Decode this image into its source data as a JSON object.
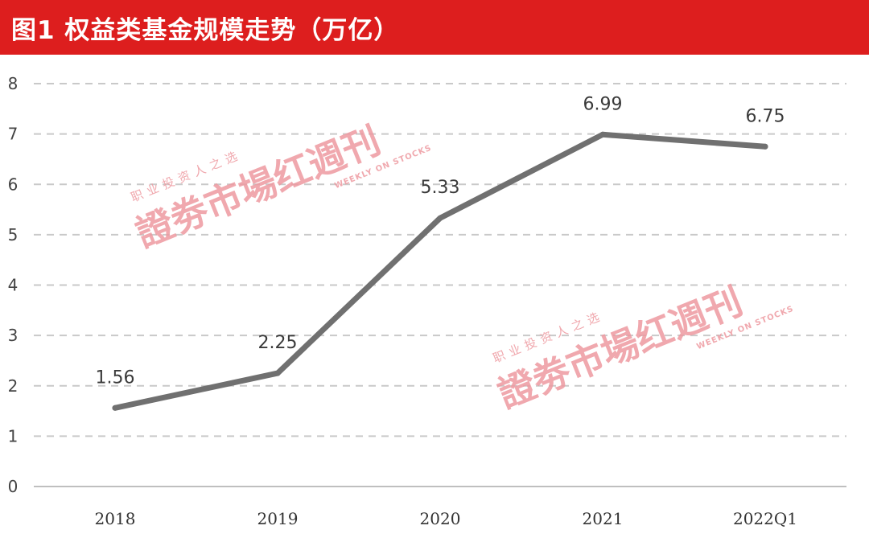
{
  "header": {
    "title": "图1  权益类基金规模走势（万亿）",
    "background": "#dd1e1e"
  },
  "chart_data": {
    "type": "line",
    "title": "图1  权益类基金规模走势（万亿）",
    "categories": [
      "2018",
      "2019",
      "2020",
      "2021",
      "2022Q1"
    ],
    "series": [
      {
        "values": [
          1.56,
          2.25,
          5.33,
          6.99,
          6.75
        ]
      }
    ],
    "data_labels": [
      "1.56",
      "2.25",
      "5.33",
      "6.99",
      "6.75"
    ],
    "y_ticks": [
      "0",
      "1",
      "2",
      "3",
      "4",
      "5",
      "6",
      "7",
      "8"
    ],
    "ylim": [
      0,
      8
    ],
    "grid": "dashed horizontal",
    "line_color": "#707070"
  },
  "watermark": {
    "main_text": "證劵市場红週刊",
    "small_text": "职业投资人之选",
    "english_text": "WEEKLY ON STOCKS",
    "color": "#ee9aa0"
  }
}
